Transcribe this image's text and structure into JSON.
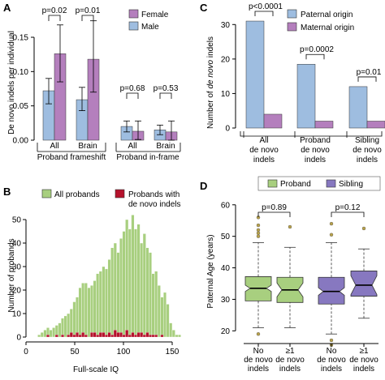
{
  "colors": {
    "female": "#b47fbd",
    "male": "#9ebde0",
    "paternal": "#9ebde0",
    "maternal": "#b47fbd",
    "all_probands": "#a8cf7f",
    "with_indels": "#b5122c",
    "proband_box": "#a8cf7f",
    "sibling_box": "#8778c0",
    "outlier": "#b9a24a"
  },
  "chart_data": [
    {
      "panel": "A",
      "type": "bar",
      "ylabel": "De novo indels per individual",
      "ylim": [
        0,
        0.15
      ],
      "yticks": [
        "0.00",
        "0.05",
        "0.10",
        "0.15"
      ],
      "legend": [
        "Female",
        "Male"
      ],
      "legend_position": "top-right",
      "groups": [
        {
          "label": "All",
          "male": 0.072,
          "male_err": [
            0.053,
            0.09
          ],
          "female": 0.126,
          "female_err": [
            0.085,
            0.168
          ]
        },
        {
          "label": "Brain",
          "male": 0.059,
          "male_err": [
            0.043,
            0.077
          ],
          "female": 0.118,
          "female_err": [
            0.07,
            0.174
          ]
        },
        {
          "label": "All",
          "male": 0.02,
          "male_err": [
            0.012,
            0.028
          ],
          "female": 0.013,
          "female_err": [
            0.001,
            0.028
          ]
        },
        {
          "label": "Brain",
          "male": 0.015,
          "male_err": [
            0.008,
            0.022
          ],
          "female": 0.012,
          "female_err": [
            0.0,
            0.028
          ]
        }
      ],
      "group_labels": [
        "Proband frameshift",
        "Proband in-frame"
      ],
      "pvalues": [
        "p=0.02",
        "p=0.01",
        "p=0.68",
        "p=0.53"
      ]
    },
    {
      "panel": "C",
      "type": "bar",
      "ylabel_prefix": "Number of",
      "ylabel_italic": "de novo",
      "ylabel_suffix": "indels",
      "ylim": [
        0,
        35
      ],
      "yticks": [
        "0",
        "10",
        "20",
        "30"
      ],
      "legend": [
        "Paternal origin",
        "Maternal origin"
      ],
      "legend_position": "top-right",
      "categories": [
        [
          "All",
          "de novo",
          "indels"
        ],
        [
          "Proband",
          "de novo",
          "indels"
        ],
        [
          "Sibling",
          "de novo",
          "indels"
        ]
      ],
      "series": [
        {
          "name": "Paternal origin",
          "values": [
            31,
            18.5,
            12
          ]
        },
        {
          "name": "Maternal origin",
          "values": [
            4,
            2,
            2
          ]
        }
      ],
      "pvalues": [
        "p<0.0001",
        "p=0.0002",
        "p=0.01"
      ]
    },
    {
      "panel": "B",
      "type": "bar",
      "xlabel": "Full-scale IQ",
      "ylabel": "Number of probands",
      "xlim": [
        0,
        160
      ],
      "ylim": [
        0,
        50
      ],
      "xticks": [
        "0",
        "50",
        "100",
        "150"
      ],
      "yticks": [
        "0",
        "10",
        "20",
        "30",
        "40",
        "50"
      ],
      "legend": [
        "All probands",
        "Probands with de novo indels"
      ],
      "legend_lines": [
        [
          "All probands"
        ],
        [
          "Probands with",
          "de novo indels"
        ]
      ],
      "legend_position": "top",
      "bin_start": 12,
      "bin_width": 3,
      "all_probands": [
        1,
        2,
        3,
        4,
        3,
        4,
        5,
        6,
        8,
        9,
        10,
        12,
        15,
        17,
        21,
        23,
        23,
        21,
        22,
        24,
        27,
        28,
        30,
        29,
        33,
        38,
        40,
        36,
        42,
        45,
        50,
        46,
        52,
        46,
        48,
        40,
        44,
        38,
        36,
        27,
        28,
        22,
        17,
        19,
        14,
        6,
        3,
        1,
        1
      ],
      "with_indels": [
        0,
        0,
        0,
        1,
        0,
        0,
        1,
        0,
        1,
        0,
        1,
        2,
        1,
        2,
        1,
        2,
        1,
        0,
        2,
        2,
        1,
        2,
        2,
        1,
        2,
        1,
        3,
        2,
        2,
        1,
        3,
        1,
        2,
        1,
        2,
        2,
        1,
        2,
        1,
        1,
        1,
        0,
        1,
        0,
        0,
        0,
        0,
        0,
        0
      ]
    },
    {
      "panel": "D",
      "type": "box",
      "ylabel": "Paternal Age (years)",
      "ylim": [
        17,
        62
      ],
      "yticks": [
        "20",
        "30",
        "40",
        "50",
        "60"
      ],
      "legend": [
        "Proband",
        "Sibling"
      ],
      "legend_position": "top",
      "categories": [
        [
          "No",
          "de novo",
          "indels"
        ],
        [
          "≥1",
          "de novo",
          "indels"
        ],
        [
          "No",
          "de novo",
          "indels"
        ],
        [
          "≥1",
          "de novo",
          "indels"
        ]
      ],
      "boxes": [
        {
          "group": "Proband",
          "whisker_low": 21,
          "q1": 29.5,
          "median": 33.5,
          "q3": 37.2,
          "whisker_high": 48,
          "notch": 1.0,
          "outliers_high": [
            50,
            51,
            52,
            53.5,
            56
          ],
          "outliers_low": [
            19
          ]
        },
        {
          "group": "Proband",
          "whisker_low": 21,
          "q1": 29,
          "median": 33,
          "q3": 37,
          "whisker_high": 46.5,
          "notch": 2.2,
          "outliers_high": [
            53
          ],
          "outliers_low": []
        },
        {
          "group": "Sibling",
          "whisker_low": 19,
          "q1": 28.5,
          "median": 32.5,
          "q3": 37,
          "whisker_high": 48,
          "notch": 1.2,
          "outliers_high": [
            50.5,
            54
          ],
          "outliers_low": [
            15.5,
            17
          ]
        },
        {
          "group": "Sibling",
          "whisker_low": 24,
          "q1": 31,
          "median": 34.5,
          "q3": 39,
          "whisker_high": 46,
          "notch": 3.0,
          "outliers_high": [
            52.5
          ],
          "outliers_low": []
        }
      ],
      "pvalues": [
        "p=0.89",
        "p=0.12"
      ]
    }
  ],
  "panel_letters": [
    "A",
    "B",
    "C",
    "D"
  ]
}
